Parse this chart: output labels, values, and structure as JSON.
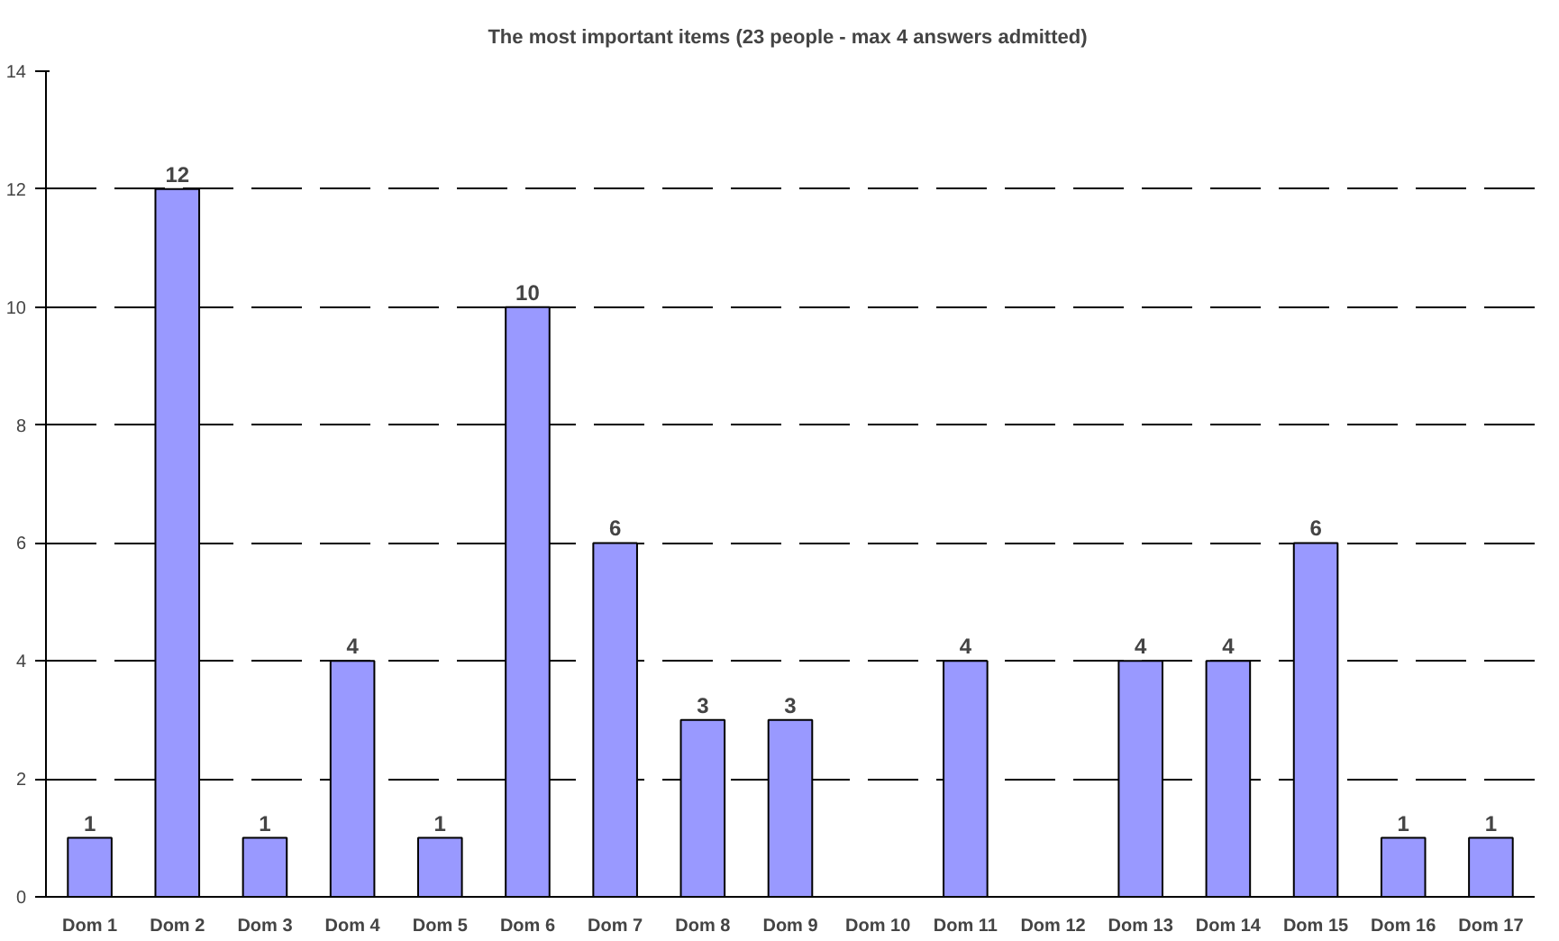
{
  "chart_data": {
    "type": "bar",
    "title": "The most important items  (23 people - max 4 answers admitted)",
    "categories": [
      "Dom 1",
      "Dom 2",
      "Dom 3",
      "Dom 4",
      "Dom 5",
      "Dom 6",
      "Dom 7",
      "Dom 8",
      "Dom 9",
      "Dom 10",
      "Dom 11",
      "Dom 12",
      "Dom 13",
      "Dom 14",
      "Dom 15",
      "Dom 16",
      "Dom 17"
    ],
    "values": [
      1,
      12,
      1,
      4,
      1,
      10,
      6,
      3,
      3,
      0,
      4,
      0,
      4,
      4,
      6,
      1,
      1
    ],
    "value_labels": [
      "1",
      "12",
      "1",
      "4",
      "1",
      "10",
      "6",
      "3",
      "3",
      null,
      "4",
      null,
      "4",
      "4",
      "6",
      "1",
      "1"
    ],
    "color": "#9999ff",
    "ylim": [
      0,
      14
    ],
    "yticks": [
      0,
      2,
      4,
      6,
      8,
      10,
      12,
      14
    ],
    "grid": "y"
  }
}
